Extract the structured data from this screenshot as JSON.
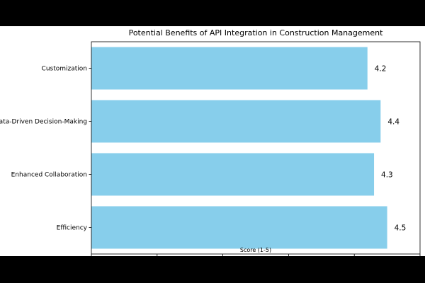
{
  "chart_data": {
    "type": "bar",
    "orientation": "horizontal",
    "title": "Potential Benefits of API Integration in Construction Management",
    "xlabel": "Score (1-5)",
    "ylabel": "",
    "categories": [
      "Efficiency",
      "Enhanced Collaboration",
      "Data-Driven Decision-Making",
      "Customization"
    ],
    "values": [
      4.5,
      4.3,
      4.4,
      4.2
    ],
    "value_labels": [
      "4.5",
      "4.3",
      "4.4",
      "4.2"
    ],
    "xlim": [
      0,
      5
    ],
    "xticks": [
      "0",
      "1",
      "2",
      "3",
      "4",
      "5"
    ],
    "grid": false,
    "bar_color": "#87ceeb"
  }
}
